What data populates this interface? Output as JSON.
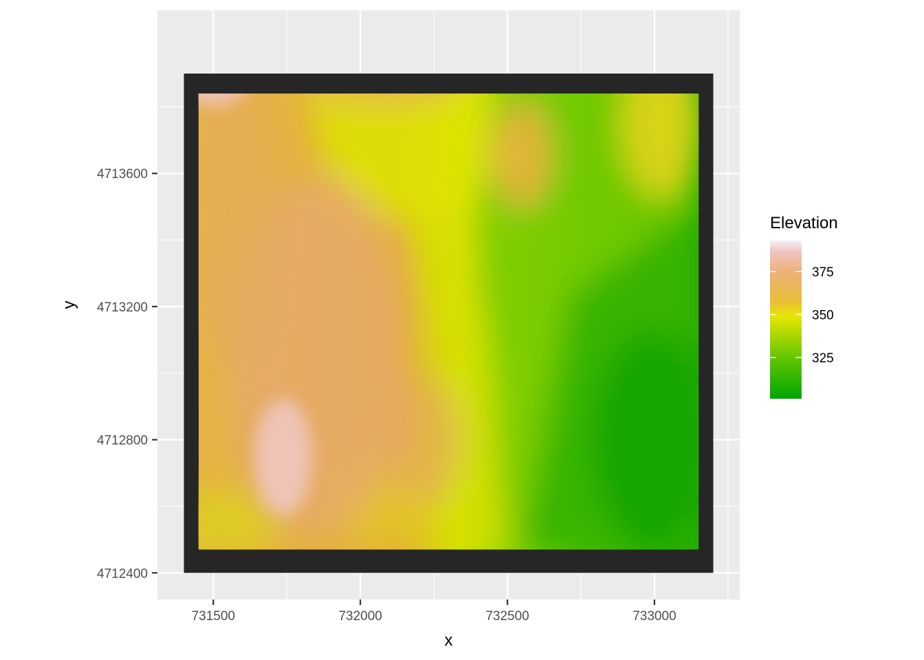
{
  "chart_data": {
    "type": "heatmap",
    "title": "",
    "xlabel": "x",
    "ylabel": "y",
    "xlim": [
      731310,
      733290
    ],
    "ylim": [
      4712320,
      4714090
    ],
    "x_ticks": [
      731500,
      732000,
      732500,
      733000
    ],
    "y_ticks": [
      4712400,
      4712800,
      4713200,
      4713600
    ],
    "grid": true,
    "frame_extent": {
      "x": [
        731400,
        733200
      ],
      "y": [
        4712400,
        4713900
      ]
    },
    "raster_extent": {
      "x": [
        731450,
        733150
      ],
      "y": [
        4712470,
        4713840
      ]
    },
    "legend": {
      "title": "Elevation",
      "position": "right",
      "range": [
        301,
        393
      ],
      "ticks": [
        325,
        350,
        375
      ],
      "colors": {
        "low": "#00a600",
        "mid_low": "#63c600",
        "mid": "#e6e600",
        "mid_high": "#e9bd3a",
        "high": "#ecb176",
        "top": "#f2f2f2"
      }
    },
    "frame_color": "#262626",
    "panel_background": "#ebebeb",
    "gridline_color": "#ffffff"
  }
}
